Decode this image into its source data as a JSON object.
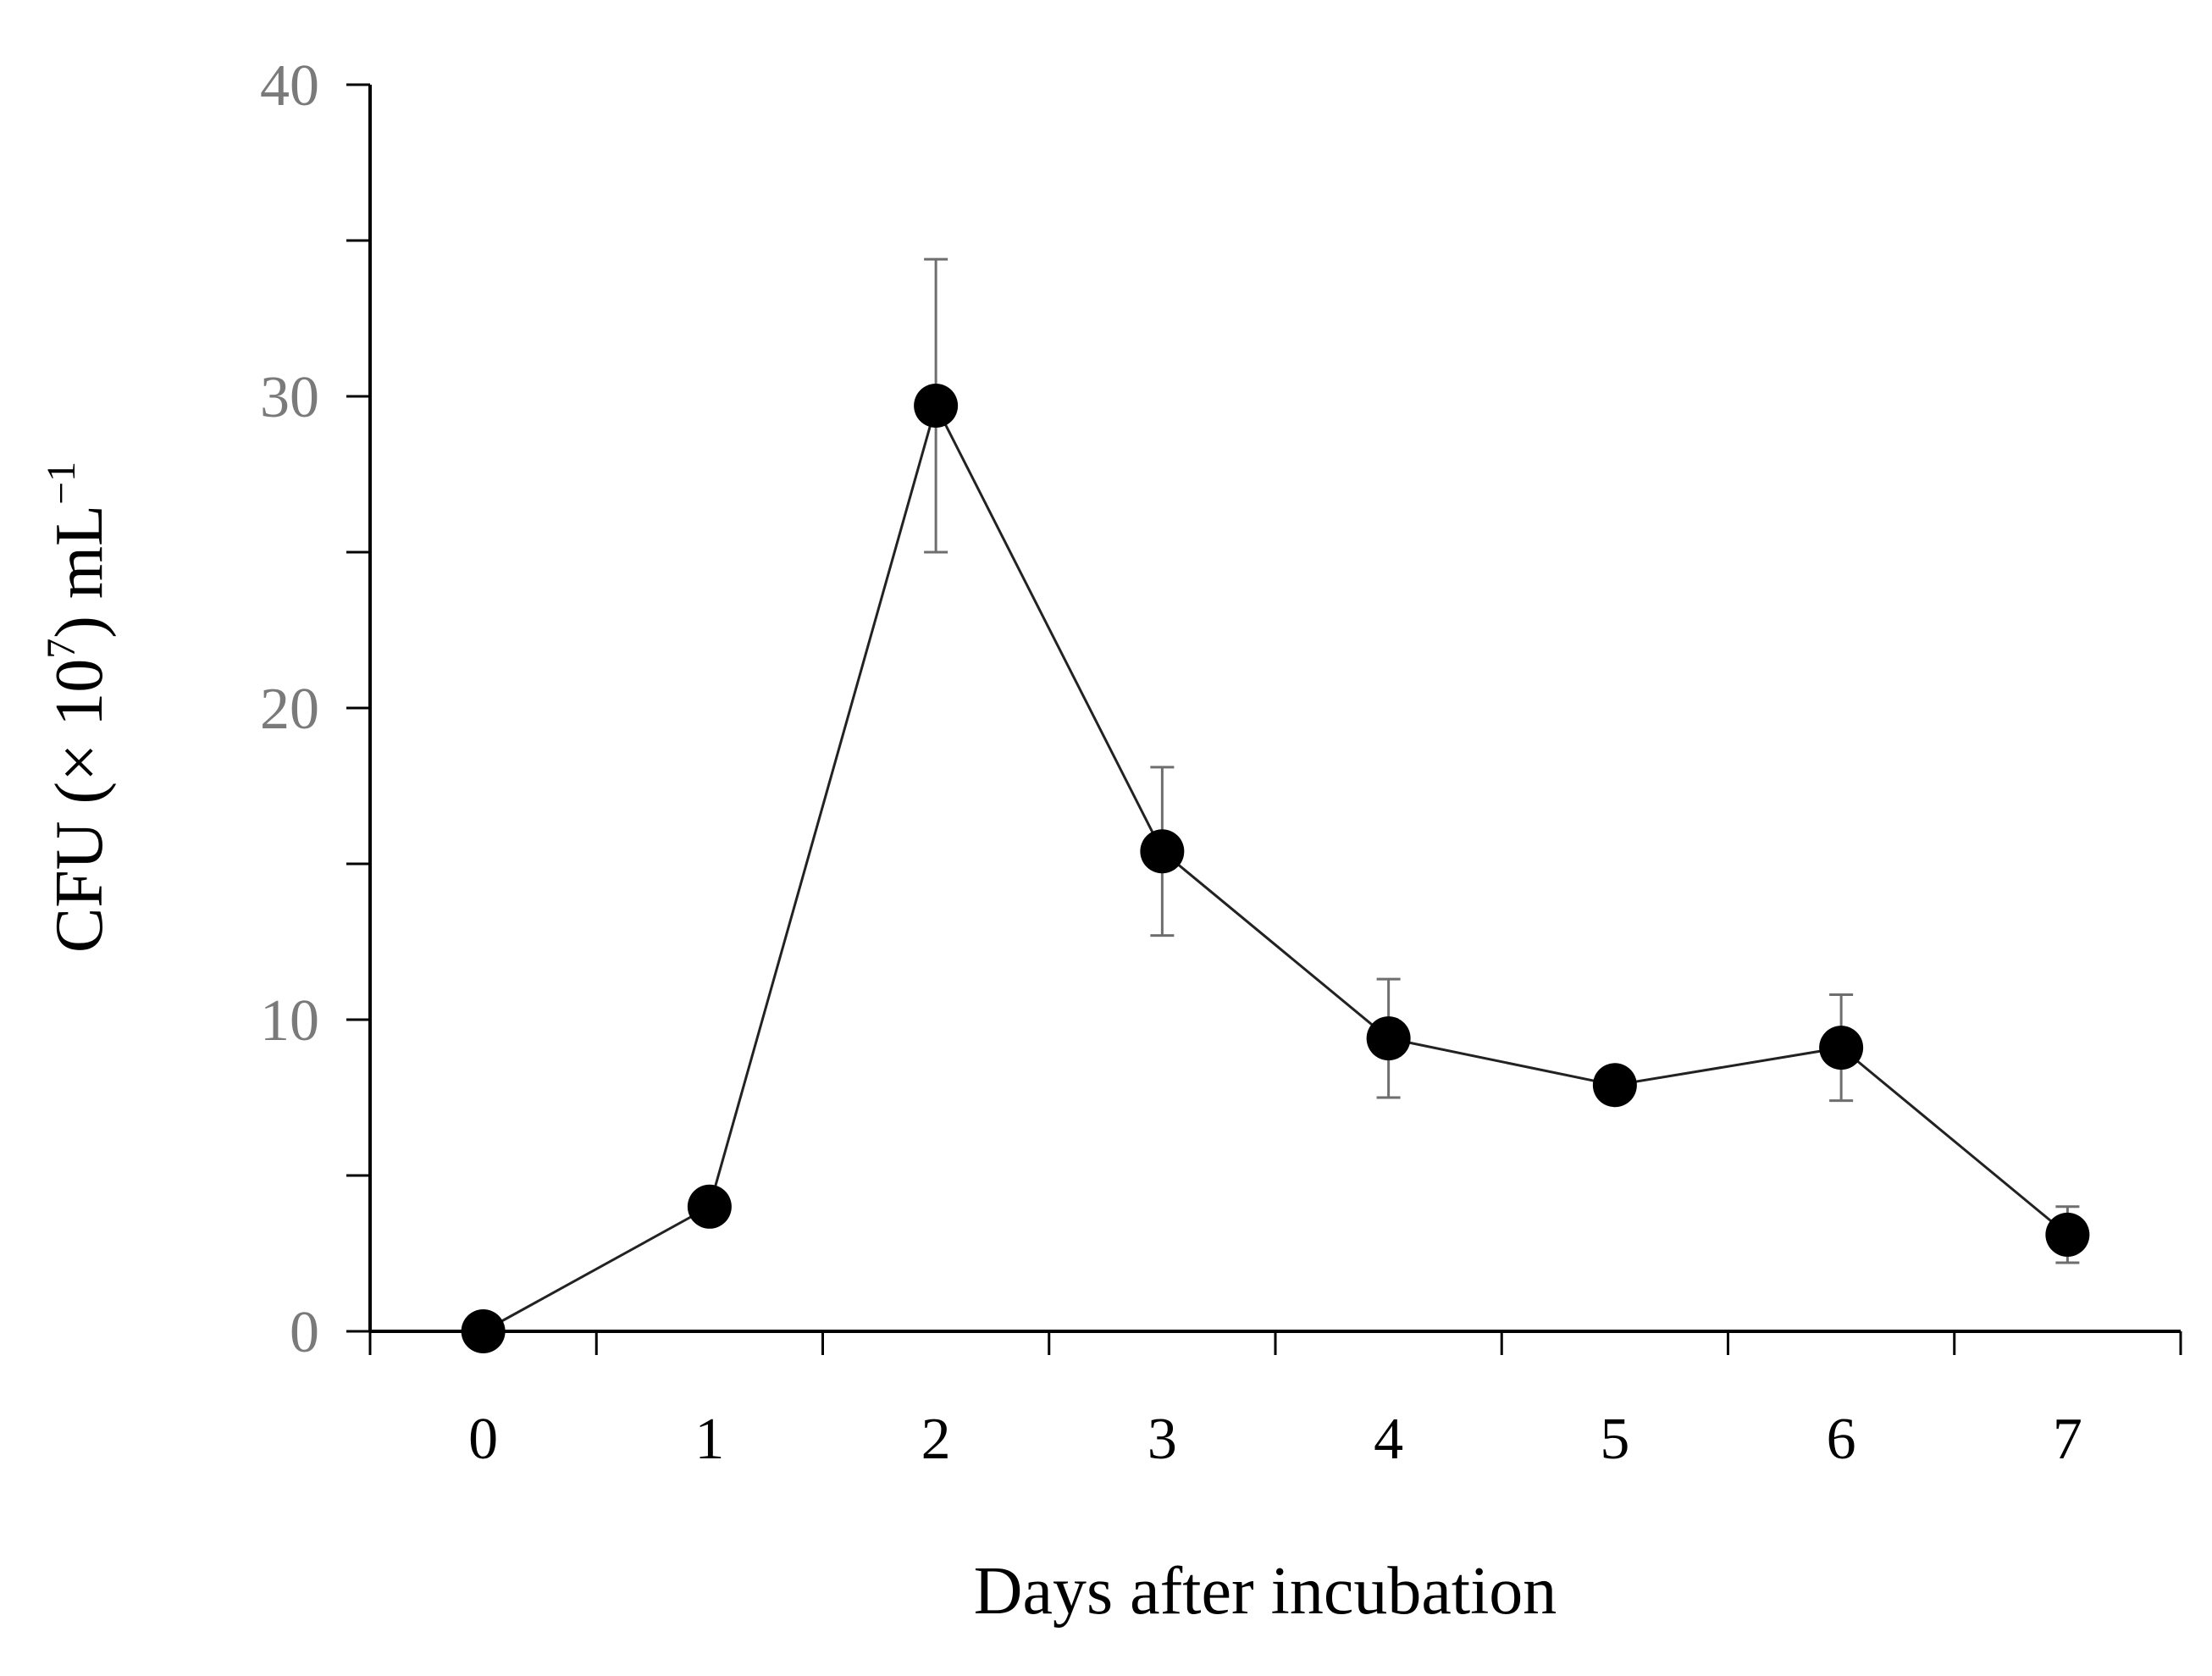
{
  "chart_data": {
    "type": "line",
    "title": "",
    "xlabel": "Days after incubation",
    "ylabel": {
      "main": "CFU (× 10",
      "exp": "7",
      "unit": ") mL",
      "unit_exp": "−1"
    },
    "xlim": [
      -0.5,
      7.5
    ],
    "ylim": [
      0,
      40
    ],
    "x_ticks": [
      "0",
      "1",
      "2",
      "3",
      "4",
      "5",
      "6",
      "7"
    ],
    "y_ticks": [
      "0",
      "10",
      "20",
      "30",
      "40"
    ],
    "y_minor_step": 5,
    "series": [
      {
        "name": "CFU",
        "x": [
          0,
          1,
          2,
          3,
          4,
          5,
          6,
          7
        ],
        "values": [
          0,
          4,
          29.7,
          15.4,
          9.4,
          7.9,
          9.1,
          3.1
        ],
        "error": [
          0,
          0,
          4.7,
          2.7,
          1.9,
          0,
          1.7,
          0.9
        ]
      }
    ],
    "colors": {
      "marker": "#000000",
      "line": "#222222",
      "error_bar": "#6e6e6e"
    }
  }
}
